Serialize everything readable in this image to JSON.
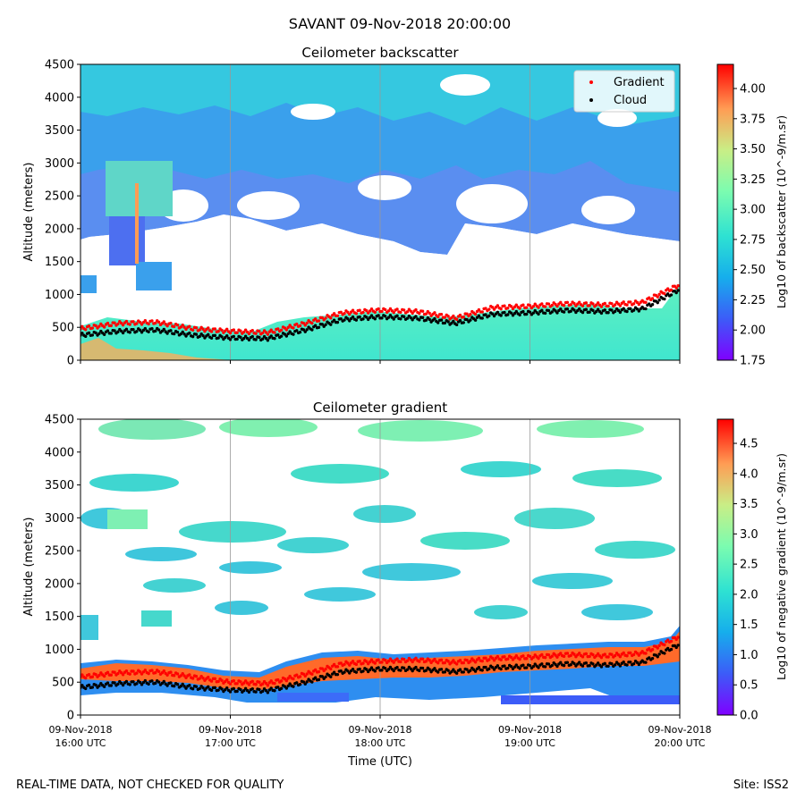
{
  "suptitle": "SAVANT 09-Nov-2018 20:00:00",
  "footer_left": "REAL-TIME DATA, NOT CHECKED FOR QUALITY",
  "footer_right": "Site: ISS2",
  "xlabel": "Time (UTC)",
  "x_ticks": [
    {
      "line1": "09-Nov-2018",
      "line2": "16:00 UTC"
    },
    {
      "line1": "09-Nov-2018",
      "line2": "17:00 UTC"
    },
    {
      "line1": "09-Nov-2018",
      "line2": "18:00 UTC"
    },
    {
      "line1": "09-Nov-2018",
      "line2": "19:00 UTC"
    },
    {
      "line1": "09-Nov-2018",
      "line2": "20:00 UTC"
    }
  ],
  "legend": {
    "gradient": "Gradient",
    "cloud": "Cloud",
    "gradient_color": "#ff0000",
    "cloud_color": "#000000"
  },
  "chart_data": [
    {
      "type": "heatmap",
      "title": "Ceilometer backscatter",
      "ylabel": "Altitude (meters)",
      "xlim_hours": [
        16,
        20
      ],
      "ylim": [
        0,
        4500
      ],
      "y_ticks": [
        "0",
        "500",
        "1000",
        "1500",
        "2000",
        "2500",
        "3000",
        "3500",
        "4000",
        "4500"
      ],
      "colorbar_label": "Log10 of backscatter (10^-9/m.sr)",
      "colorbar_ticks": [
        "1.75",
        "2.00",
        "2.25",
        "2.50",
        "2.75",
        "3.00",
        "3.25",
        "3.50",
        "3.75",
        "4.00"
      ],
      "colorbar_range": [
        1.75,
        4.2
      ],
      "gradient_height": {
        "time": [
          16.0,
          16.25,
          16.5,
          16.75,
          17.0,
          17.25,
          17.5,
          17.75,
          18.0,
          18.25,
          18.5,
          18.75,
          19.0,
          19.25,
          19.5,
          19.75,
          20.0
        ],
        "altitude": [
          480,
          560,
          580,
          480,
          440,
          420,
          560,
          720,
          760,
          740,
          640,
          800,
          820,
          860,
          840,
          880,
          1150
        ]
      },
      "cloud_height": {
        "time": [
          16.0,
          16.25,
          16.5,
          16.75,
          17.0,
          17.25,
          17.5,
          17.75,
          18.0,
          18.25,
          18.5,
          18.75,
          19.0,
          19.25,
          19.5,
          19.75,
          20.0
        ],
        "altitude": [
          380,
          440,
          460,
          380,
          340,
          330,
          460,
          620,
          660,
          640,
          560,
          700,
          720,
          760,
          740,
          780,
          1080
        ]
      }
    },
    {
      "type": "heatmap",
      "title": "Ceilometer gradient",
      "ylabel": "Altitude (meters)",
      "xlim_hours": [
        16,
        20
      ],
      "ylim": [
        0,
        4500
      ],
      "y_ticks": [
        "0",
        "500",
        "1000",
        "1500",
        "2000",
        "2500",
        "3000",
        "3500",
        "4000",
        "4500"
      ],
      "colorbar_label": "Log10 of negative gradient (10^-9/m.sr)",
      "colorbar_ticks": [
        "0.0",
        "0.5",
        "1.0",
        "1.5",
        "2.0",
        "2.5",
        "3.0",
        "3.5",
        "4.0",
        "4.5"
      ],
      "colorbar_range": [
        0,
        4.9
      ],
      "gradient_height": {
        "time": [
          16.0,
          16.25,
          16.5,
          16.75,
          17.0,
          17.25,
          17.5,
          17.75,
          18.0,
          18.25,
          18.5,
          18.75,
          19.0,
          19.25,
          19.5,
          19.75,
          20.0
        ],
        "altitude": [
          580,
          640,
          660,
          580,
          500,
          480,
          620,
          780,
          820,
          840,
          800,
          860,
          880,
          920,
          900,
          940,
          1200
        ]
      },
      "cloud_height": {
        "time": [
          16.0,
          16.25,
          16.5,
          16.75,
          17.0,
          17.25,
          17.5,
          17.75,
          18.0,
          18.25,
          18.5,
          18.75,
          19.0,
          19.25,
          19.5,
          19.75,
          20.0
        ],
        "altitude": [
          420,
          480,
          500,
          420,
          380,
          370,
          500,
          660,
          700,
          700,
          660,
          720,
          740,
          780,
          760,
          800,
          1080
        ]
      }
    }
  ]
}
